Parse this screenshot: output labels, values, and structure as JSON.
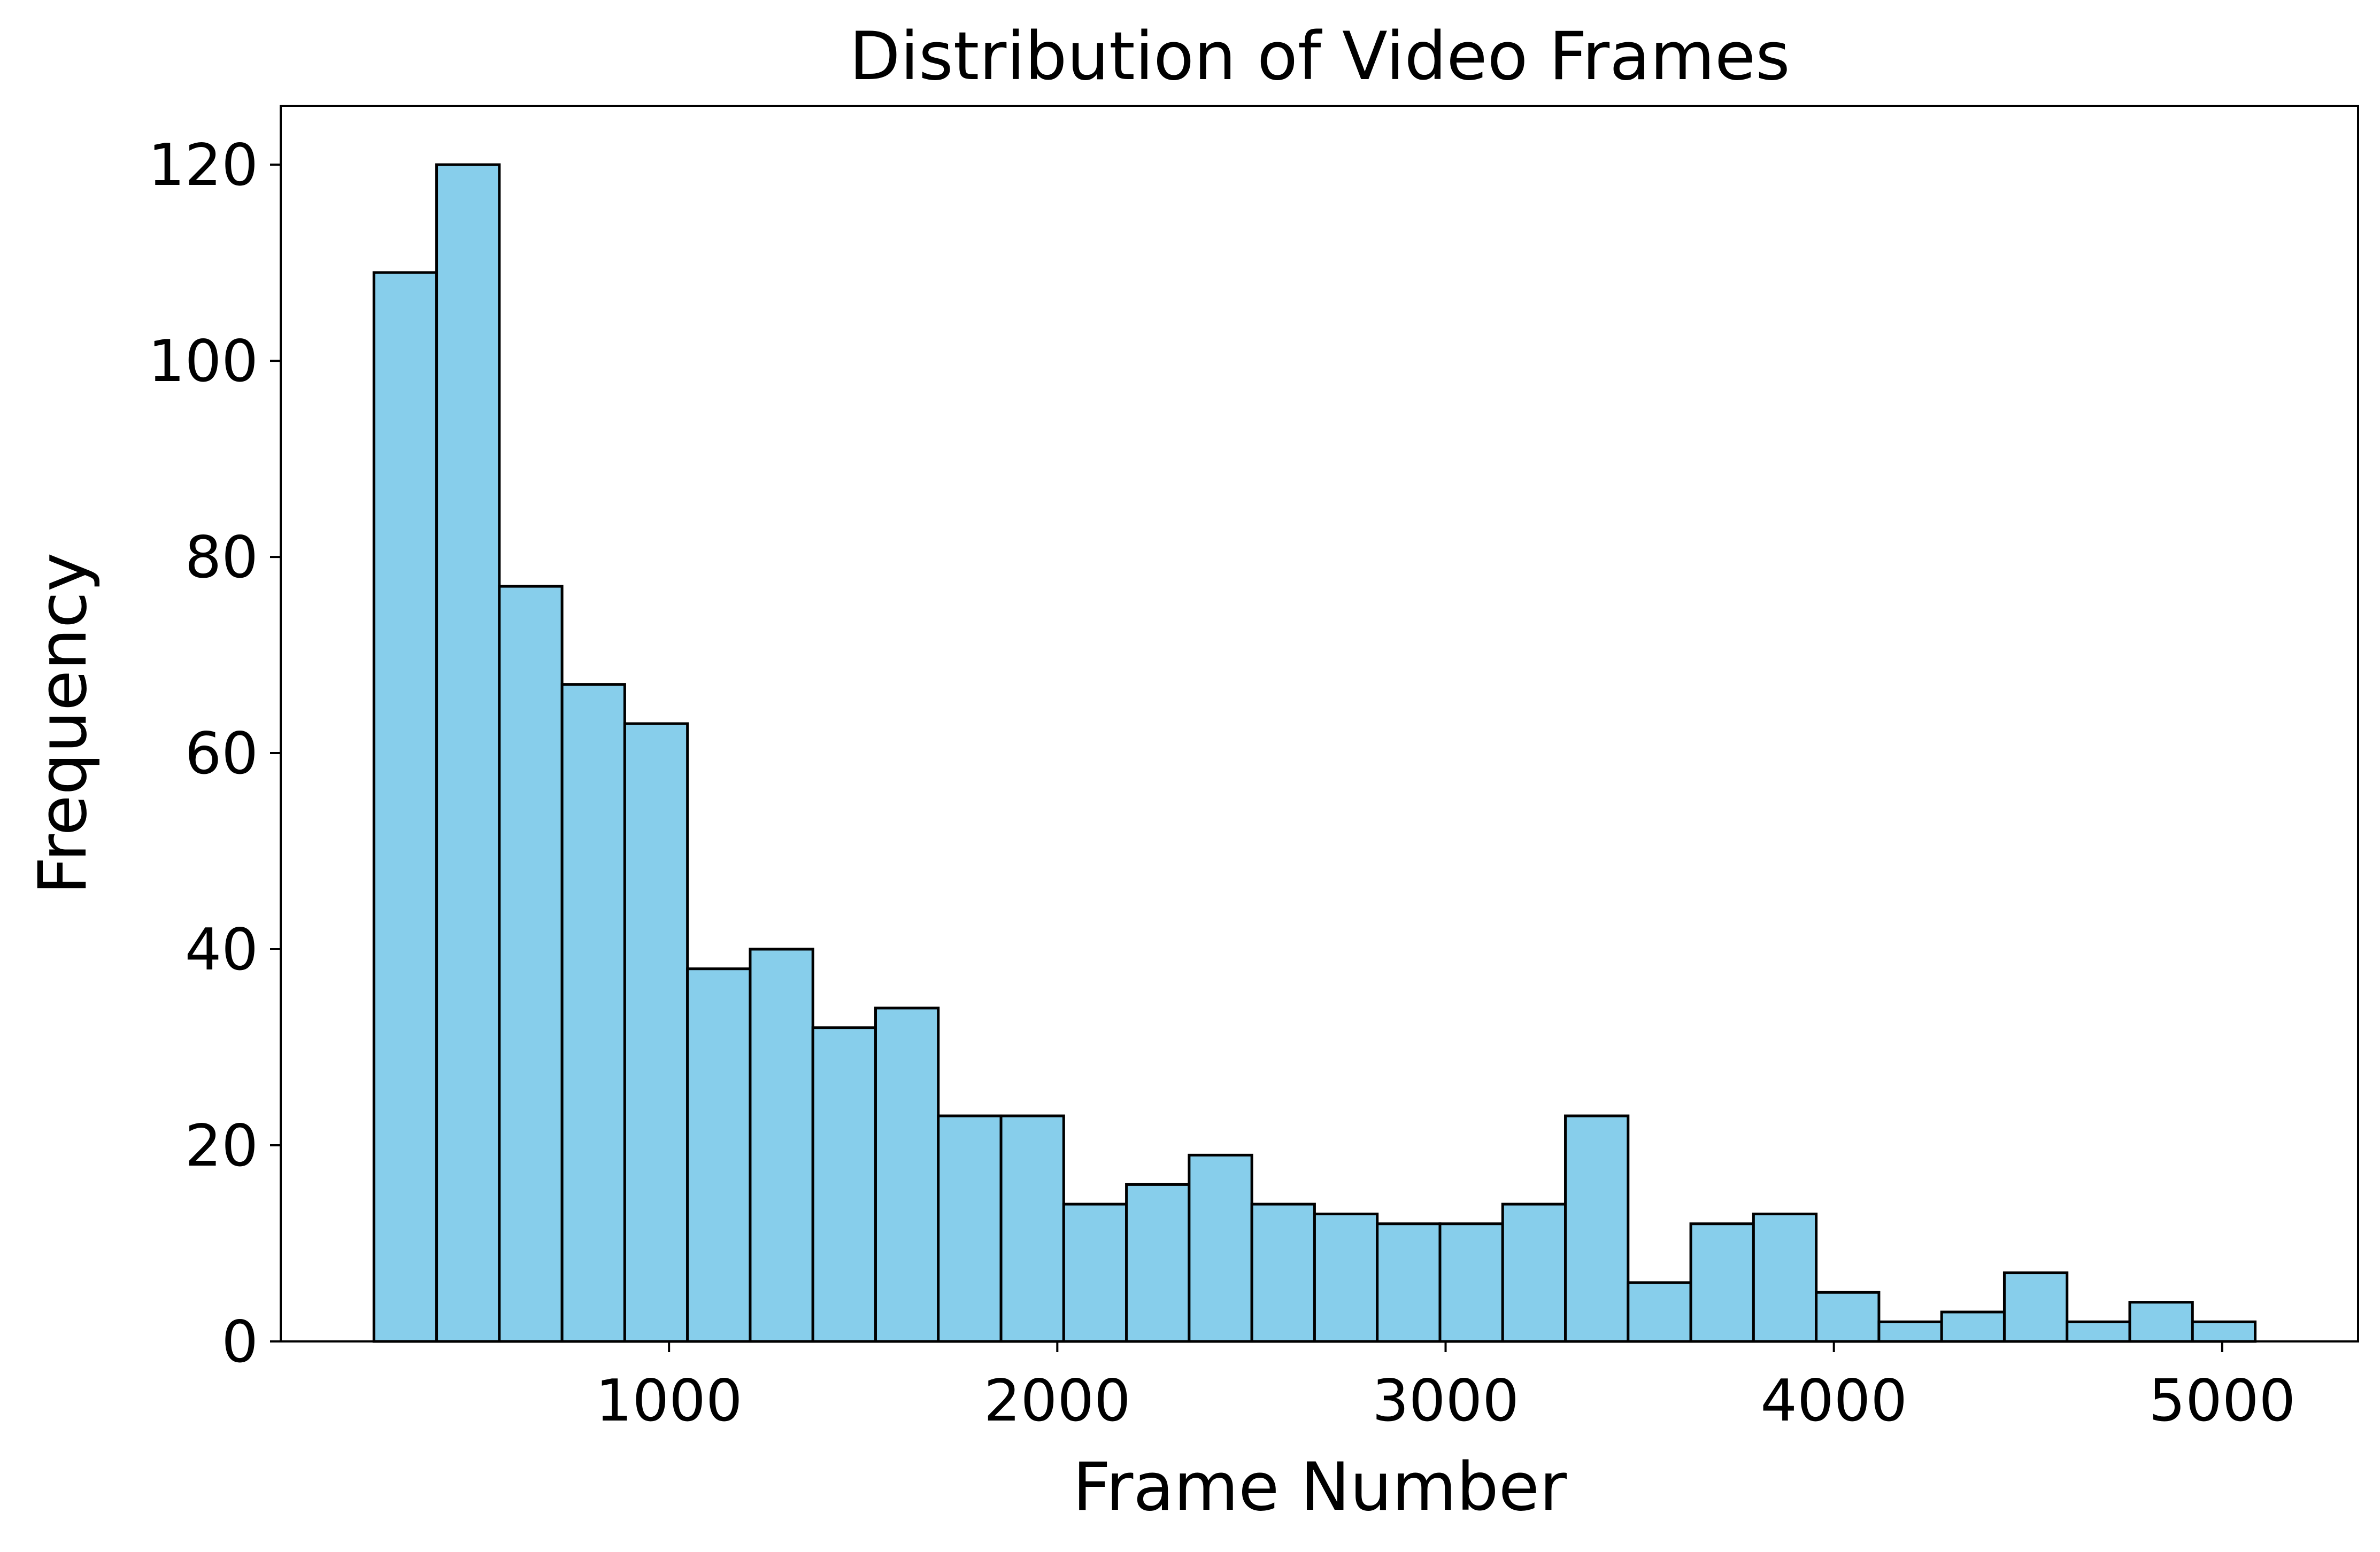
{
  "chart_data": {
    "type": "bar",
    "title": "Distribution of Video Frames",
    "xlabel": "Frame Number",
    "ylabel": "Frequency",
    "bin_start": 240,
    "bin_width": 161.5,
    "values": [
      109,
      120,
      77,
      67,
      63,
      38,
      40,
      32,
      34,
      23,
      23,
      14,
      16,
      19,
      14,
      13,
      12,
      12,
      14,
      23,
      6,
      12,
      13,
      5,
      2,
      3,
      7,
      2,
      4,
      2
    ],
    "xlim": [
      0,
      5350
    ],
    "ylim": [
      0,
      126
    ],
    "xticks": [
      1000,
      2000,
      3000,
      4000,
      5000
    ],
    "xtick_labels": [
      "1000",
      "2000",
      "3000",
      "4000",
      "5000"
    ],
    "yticks": [
      0,
      20,
      40,
      60,
      80,
      100,
      120
    ],
    "ytick_labels": [
      "0",
      "20",
      "40",
      "60",
      "80",
      "100",
      "120"
    ],
    "bar_color": "#87ceeb",
    "edge_color": "#000000",
    "grid": false,
    "legend": "none"
  }
}
